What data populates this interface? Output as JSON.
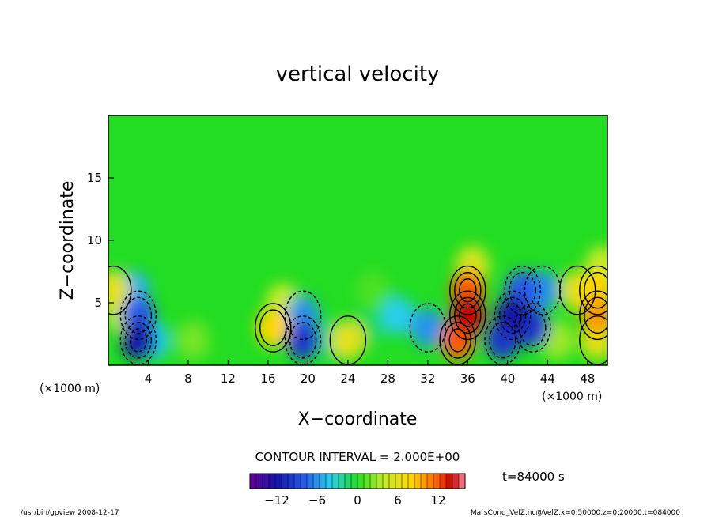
{
  "chart_data": {
    "type": "heatmap",
    "title": "vertical velocity",
    "xlabel": "X−coordinate",
    "ylabel": "Z−coordinate",
    "x_unit_left": "(×1000 m)",
    "x_unit_right": "(×1000 m)",
    "xlim": [
      0,
      50
    ],
    "ylim": [
      0,
      20
    ],
    "x_ticks": [
      4,
      8,
      12,
      16,
      20,
      24,
      28,
      32,
      36,
      40,
      44,
      48
    ],
    "y_ticks": [
      5,
      10,
      15
    ],
    "contour_interval_text": "CONTOUR INTERVAL = 2.000E+00",
    "time_label": "t=84000  s",
    "colorbar": {
      "min": -16,
      "max": 16,
      "ticks": [
        -12,
        -6,
        0,
        6,
        12
      ],
      "tick_labels": [
        "−12",
        "−6",
        "0",
        "6",
        "12"
      ]
    },
    "cells": [
      {
        "x": 0.5,
        "z": 6,
        "w": 6
      },
      {
        "x": 1.5,
        "z": 4,
        "w": 4
      },
      {
        "x": 3.0,
        "z": 2,
        "w": -12
      },
      {
        "x": 3.0,
        "z": 4,
        "w": -8
      },
      {
        "x": 2.5,
        "z": 6,
        "w": -5
      },
      {
        "x": 4.5,
        "z": 2,
        "w": -4
      },
      {
        "x": 8.5,
        "z": 2,
        "w": 2
      },
      {
        "x": 16.5,
        "z": 3,
        "w": 8
      },
      {
        "x": 17.5,
        "z": 5,
        "w": 4
      },
      {
        "x": 19.5,
        "z": 2,
        "w": -10
      },
      {
        "x": 19.5,
        "z": 4,
        "w": -6
      },
      {
        "x": 22.5,
        "z": 2,
        "w": -2
      },
      {
        "x": 24.0,
        "z": 2,
        "w": 6
      },
      {
        "x": 26.0,
        "z": 3,
        "w": -1
      },
      {
        "x": 26.5,
        "z": 6,
        "w": 1
      },
      {
        "x": 29.0,
        "z": 4,
        "w": -4
      },
      {
        "x": 32.0,
        "z": 3,
        "w": -6
      },
      {
        "x": 35.0,
        "z": 2,
        "w": 12
      },
      {
        "x": 36.0,
        "z": 4,
        "w": 14
      },
      {
        "x": 36.0,
        "z": 6,
        "w": 12
      },
      {
        "x": 36.5,
        "z": 8,
        "w": 5
      },
      {
        "x": 39.5,
        "z": 2,
        "w": -10
      },
      {
        "x": 40.5,
        "z": 4,
        "w": -12
      },
      {
        "x": 41.5,
        "z": 6,
        "w": -8
      },
      {
        "x": 42.5,
        "z": 3,
        "w": -10
      },
      {
        "x": 43.5,
        "z": 6,
        "w": -6
      },
      {
        "x": 45.0,
        "z": 2,
        "w": 3
      },
      {
        "x": 47.0,
        "z": 6,
        "w": 6
      },
      {
        "x": 49.0,
        "z": 2,
        "w": 6
      },
      {
        "x": 49.0,
        "z": 4,
        "w": 10
      },
      {
        "x": 49.0,
        "z": 6,
        "w": 8
      },
      {
        "x": 49.5,
        "z": 8,
        "w": 4
      }
    ]
  },
  "footer": {
    "left": "/usr/bin/gpview   2008-12-17",
    "right": "MarsCond_VelZ.nc@VelZ,x=0:50000,z=0:20000,t=084000"
  },
  "colors": {
    "background": "#ffffff",
    "field_base": "#22dd22",
    "contour": "#000000"
  }
}
